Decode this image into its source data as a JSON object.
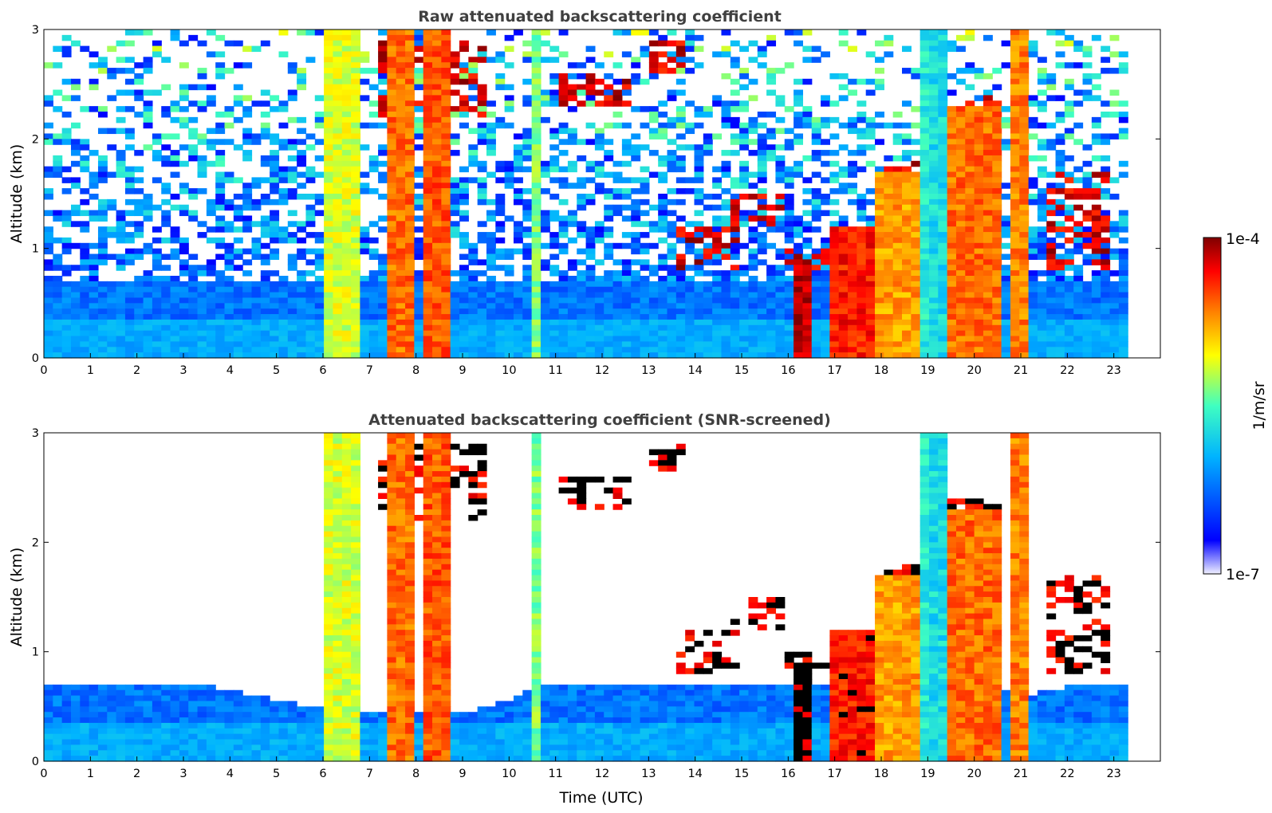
{
  "chart_data": [
    {
      "type": "heatmap",
      "title": "Raw attenuated backscattering coefficient",
      "xlabel": "",
      "ylabel": "Altitude (km)",
      "xlim": [
        0,
        24
      ],
      "ylim": [
        0,
        3
      ],
      "x_ticks": [
        0,
        1,
        2,
        3,
        4,
        5,
        6,
        7,
        8,
        9,
        10,
        11,
        12,
        13,
        14,
        15,
        16,
        17,
        18,
        19,
        20,
        21,
        22,
        23
      ],
      "y_ticks": [
        0,
        1,
        2,
        3
      ],
      "data_end_x": 23.3,
      "plumes": [
        {
          "x": [
            6.0,
            6.8
          ],
          "top": 3.0,
          "level": 0.62
        },
        {
          "x": [
            7.4,
            8.0
          ],
          "top": 3.0,
          "level": 0.8
        },
        {
          "x": [
            8.2,
            8.7
          ],
          "top": 3.0,
          "level": 0.82
        },
        {
          "x": [
            10.5,
            10.7
          ],
          "top": 3.0,
          "level": 0.55
        },
        {
          "x": [
            16.2,
            16.5
          ],
          "top": 0.9,
          "level": 0.96
        },
        {
          "x": [
            16.9,
            17.9
          ],
          "top": 1.2,
          "level": 0.88
        },
        {
          "x": [
            17.9,
            18.8
          ],
          "top": 1.7,
          "level": 0.75
        },
        {
          "x": [
            18.8,
            19.0
          ],
          "top": 3.0,
          "level": 0.45
        },
        {
          "x": [
            19.0,
            19.4
          ],
          "top": 3.0,
          "level": 0.42
        },
        {
          "x": [
            19.4,
            20.5
          ],
          "top": 2.3,
          "level": 0.8
        },
        {
          "x": [
            20.7,
            21.1
          ],
          "top": 3.0,
          "level": 0.78
        }
      ],
      "cloud_layers": [
        {
          "x": [
            7.2,
            9.5
          ],
          "alt": [
            2.2,
            2.9
          ]
        },
        {
          "x": [
            11.0,
            12.6
          ],
          "alt": [
            2.3,
            2.6
          ]
        },
        {
          "x": [
            13.0,
            13.8
          ],
          "alt": [
            2.6,
            2.9
          ]
        },
        {
          "x": [
            13.5,
            15.0
          ],
          "alt": [
            0.8,
            1.2
          ]
        },
        {
          "x": [
            14.8,
            16.0
          ],
          "alt": [
            1.2,
            1.5
          ]
        },
        {
          "x": [
            16.0,
            17.0
          ],
          "alt": [
            0.8,
            1.0
          ]
        },
        {
          "x": [
            18.0,
            19.0
          ],
          "alt": [
            1.3,
            1.8
          ]
        },
        {
          "x": [
            19.5,
            20.5
          ],
          "alt": [
            1.8,
            2.4
          ]
        },
        {
          "x": [
            21.5,
            23.0
          ],
          "alt": [
            0.8,
            1.7
          ]
        }
      ]
    },
    {
      "type": "heatmap",
      "title": "Attenuated backscattering coefficient (SNR-screened)",
      "xlabel": "Time (UTC)",
      "ylabel": "Altitude (km)",
      "xlim": [
        0,
        24
      ],
      "ylim": [
        0,
        3
      ],
      "x_ticks": [
        0,
        1,
        2,
        3,
        4,
        5,
        6,
        7,
        8,
        9,
        10,
        11,
        12,
        13,
        14,
        15,
        16,
        17,
        18,
        19,
        20,
        21,
        22,
        23
      ],
      "y_ticks": [
        0,
        1,
        2,
        3
      ],
      "data_end_x": 23.3,
      "screened_boundary_layer_top": [
        [
          0,
          1.0
        ],
        [
          2,
          0.85
        ],
        [
          4,
          0.65
        ],
        [
          5.8,
          0.5
        ],
        [
          7.4,
          0.45
        ],
        [
          9,
          0.45
        ],
        [
          10,
          0.55
        ],
        [
          11,
          0.8
        ],
        [
          13,
          0.9
        ],
        [
          16,
          1.2
        ],
        [
          21.1,
          0.6
        ],
        [
          23.3,
          0.8
        ]
      ]
    }
  ],
  "colorbar": {
    "label": "1/m/sr",
    "tick_top": "1e-4",
    "tick_bottom": "1e-7",
    "colormap": [
      "#f0f0ff",
      "#0000ff",
      "#00b4ff",
      "#40ffc0",
      "#ffff00",
      "#ff8000",
      "#ff0000",
      "#800000"
    ]
  }
}
